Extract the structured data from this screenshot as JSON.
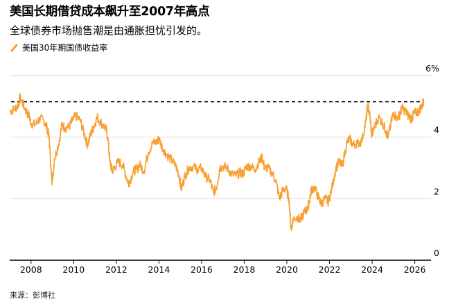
{
  "title": "美国长期借贷成本飙升至2007年高点",
  "subtitle": "全球债券市场抛售潮是由通胀担忧引发的。",
  "source": "来源：彭博社",
  "chart_data": {
    "type": "line",
    "legend_position": "top-left",
    "grid": true,
    "series": [
      {
        "name": "美国30年期国债收益率",
        "color": "#f7a033",
        "points": [
          [
            2007.0,
            4.85
          ],
          [
            2007.2,
            4.9
          ],
          [
            2007.4,
            5.05
          ],
          [
            2007.5,
            5.3
          ],
          [
            2007.7,
            4.95
          ],
          [
            2007.9,
            4.7
          ],
          [
            2008.0,
            4.45
          ],
          [
            2008.2,
            4.4
          ],
          [
            2008.4,
            4.6
          ],
          [
            2008.6,
            4.55
          ],
          [
            2008.75,
            4.3
          ],
          [
            2008.85,
            4.0
          ],
          [
            2008.95,
            2.8
          ],
          [
            2009.0,
            2.55
          ],
          [
            2009.1,
            3.3
          ],
          [
            2009.3,
            3.8
          ],
          [
            2009.45,
            4.4
          ],
          [
            2009.6,
            4.3
          ],
          [
            2009.8,
            4.35
          ],
          [
            2009.95,
            4.55
          ],
          [
            2010.1,
            4.7
          ],
          [
            2010.3,
            4.55
          ],
          [
            2010.5,
            4.1
          ],
          [
            2010.65,
            3.75
          ],
          [
            2010.8,
            4.1
          ],
          [
            2010.95,
            4.35
          ],
          [
            2011.1,
            4.65
          ],
          [
            2011.3,
            4.45
          ],
          [
            2011.5,
            4.3
          ],
          [
            2011.6,
            4.0
          ],
          [
            2011.7,
            3.2
          ],
          [
            2011.8,
            2.9
          ],
          [
            2011.9,
            3.0
          ],
          [
            2012.1,
            3.2
          ],
          [
            2012.3,
            3.1
          ],
          [
            2012.5,
            2.65
          ],
          [
            2012.6,
            2.5
          ],
          [
            2012.8,
            2.9
          ],
          [
            2012.95,
            2.95
          ],
          [
            2013.1,
            3.1
          ],
          [
            2013.3,
            2.9
          ],
          [
            2013.5,
            3.5
          ],
          [
            2013.7,
            3.8
          ],
          [
            2013.9,
            3.85
          ],
          [
            2014.0,
            3.95
          ],
          [
            2014.2,
            3.6
          ],
          [
            2014.4,
            3.4
          ],
          [
            2014.6,
            3.25
          ],
          [
            2014.8,
            3.05
          ],
          [
            2014.95,
            2.75
          ],
          [
            2015.05,
            2.3
          ],
          [
            2015.2,
            2.7
          ],
          [
            2015.4,
            3.0
          ],
          [
            2015.6,
            3.05
          ],
          [
            2015.8,
            2.95
          ],
          [
            2016.0,
            3.0
          ],
          [
            2016.2,
            2.7
          ],
          [
            2016.4,
            2.6
          ],
          [
            2016.55,
            2.2
          ],
          [
            2016.7,
            2.35
          ],
          [
            2016.85,
            3.0
          ],
          [
            2017.0,
            3.05
          ],
          [
            2017.2,
            3.0
          ],
          [
            2017.4,
            2.8
          ],
          [
            2017.6,
            2.75
          ],
          [
            2017.8,
            2.85
          ],
          [
            2017.95,
            2.8
          ],
          [
            2018.1,
            3.05
          ],
          [
            2018.3,
            3.05
          ],
          [
            2018.5,
            2.95
          ],
          [
            2018.7,
            3.2
          ],
          [
            2018.85,
            3.35
          ],
          [
            2018.95,
            3.0
          ],
          [
            2019.1,
            3.0
          ],
          [
            2019.3,
            2.85
          ],
          [
            2019.5,
            2.55
          ],
          [
            2019.65,
            2.0
          ],
          [
            2019.8,
            2.25
          ],
          [
            2019.95,
            2.35
          ],
          [
            2020.1,
            2.0
          ],
          [
            2020.2,
            1.0
          ],
          [
            2020.3,
            1.35
          ],
          [
            2020.5,
            1.4
          ],
          [
            2020.65,
            1.3
          ],
          [
            2020.8,
            1.55
          ],
          [
            2020.95,
            1.65
          ],
          [
            2021.05,
            1.9
          ],
          [
            2021.15,
            2.3
          ],
          [
            2021.3,
            2.35
          ],
          [
            2021.5,
            2.0
          ],
          [
            2021.6,
            1.85
          ],
          [
            2021.8,
            2.0
          ],
          [
            2021.95,
            1.9
          ],
          [
            2022.1,
            2.3
          ],
          [
            2022.3,
            3.0
          ],
          [
            2022.45,
            3.2
          ],
          [
            2022.6,
            3.05
          ],
          [
            2022.8,
            3.8
          ],
          [
            2022.95,
            3.95
          ],
          [
            2023.1,
            3.75
          ],
          [
            2023.3,
            3.8
          ],
          [
            2023.5,
            3.85
          ],
          [
            2023.7,
            4.5
          ],
          [
            2023.8,
            5.05
          ],
          [
            2023.9,
            4.65
          ],
          [
            2023.98,
            4.05
          ],
          [
            2024.1,
            4.3
          ],
          [
            2024.3,
            4.65
          ],
          [
            2024.5,
            4.45
          ],
          [
            2024.65,
            4.2
          ],
          [
            2024.75,
            4.0
          ],
          [
            2024.9,
            4.5
          ],
          [
            2025.0,
            4.8
          ],
          [
            2025.15,
            4.6
          ],
          [
            2025.3,
            4.75
          ],
          [
            2025.4,
            4.95
          ],
          [
            2025.55,
            4.85
          ],
          [
            2025.7,
            4.7
          ],
          [
            2025.85,
            4.6
          ],
          [
            2025.95,
            4.75
          ],
          [
            2026.05,
            4.8
          ],
          [
            2026.2,
            4.85
          ],
          [
            2026.35,
            5.05
          ],
          [
            2026.42,
            5.15
          ]
        ]
      }
    ],
    "reference_line": {
      "y": 5.15,
      "style": "dashed"
    },
    "xlim": [
      2007.0,
      2026.5
    ],
    "ylim": [
      0,
      6
    ],
    "x_ticks": [
      2008,
      2010,
      2012,
      2014,
      2016,
      2018,
      2020,
      2022,
      2024,
      2026
    ],
    "x_tick_labels": [
      "2008",
      "2010",
      "2012",
      "2014",
      "2016",
      "2018",
      "2020",
      "2022",
      "2024",
      "2026"
    ],
    "y_ticks": [
      0,
      2,
      4,
      6
    ],
    "y_tick_labels": [
      "0",
      "2",
      "4",
      "6%"
    ]
  }
}
